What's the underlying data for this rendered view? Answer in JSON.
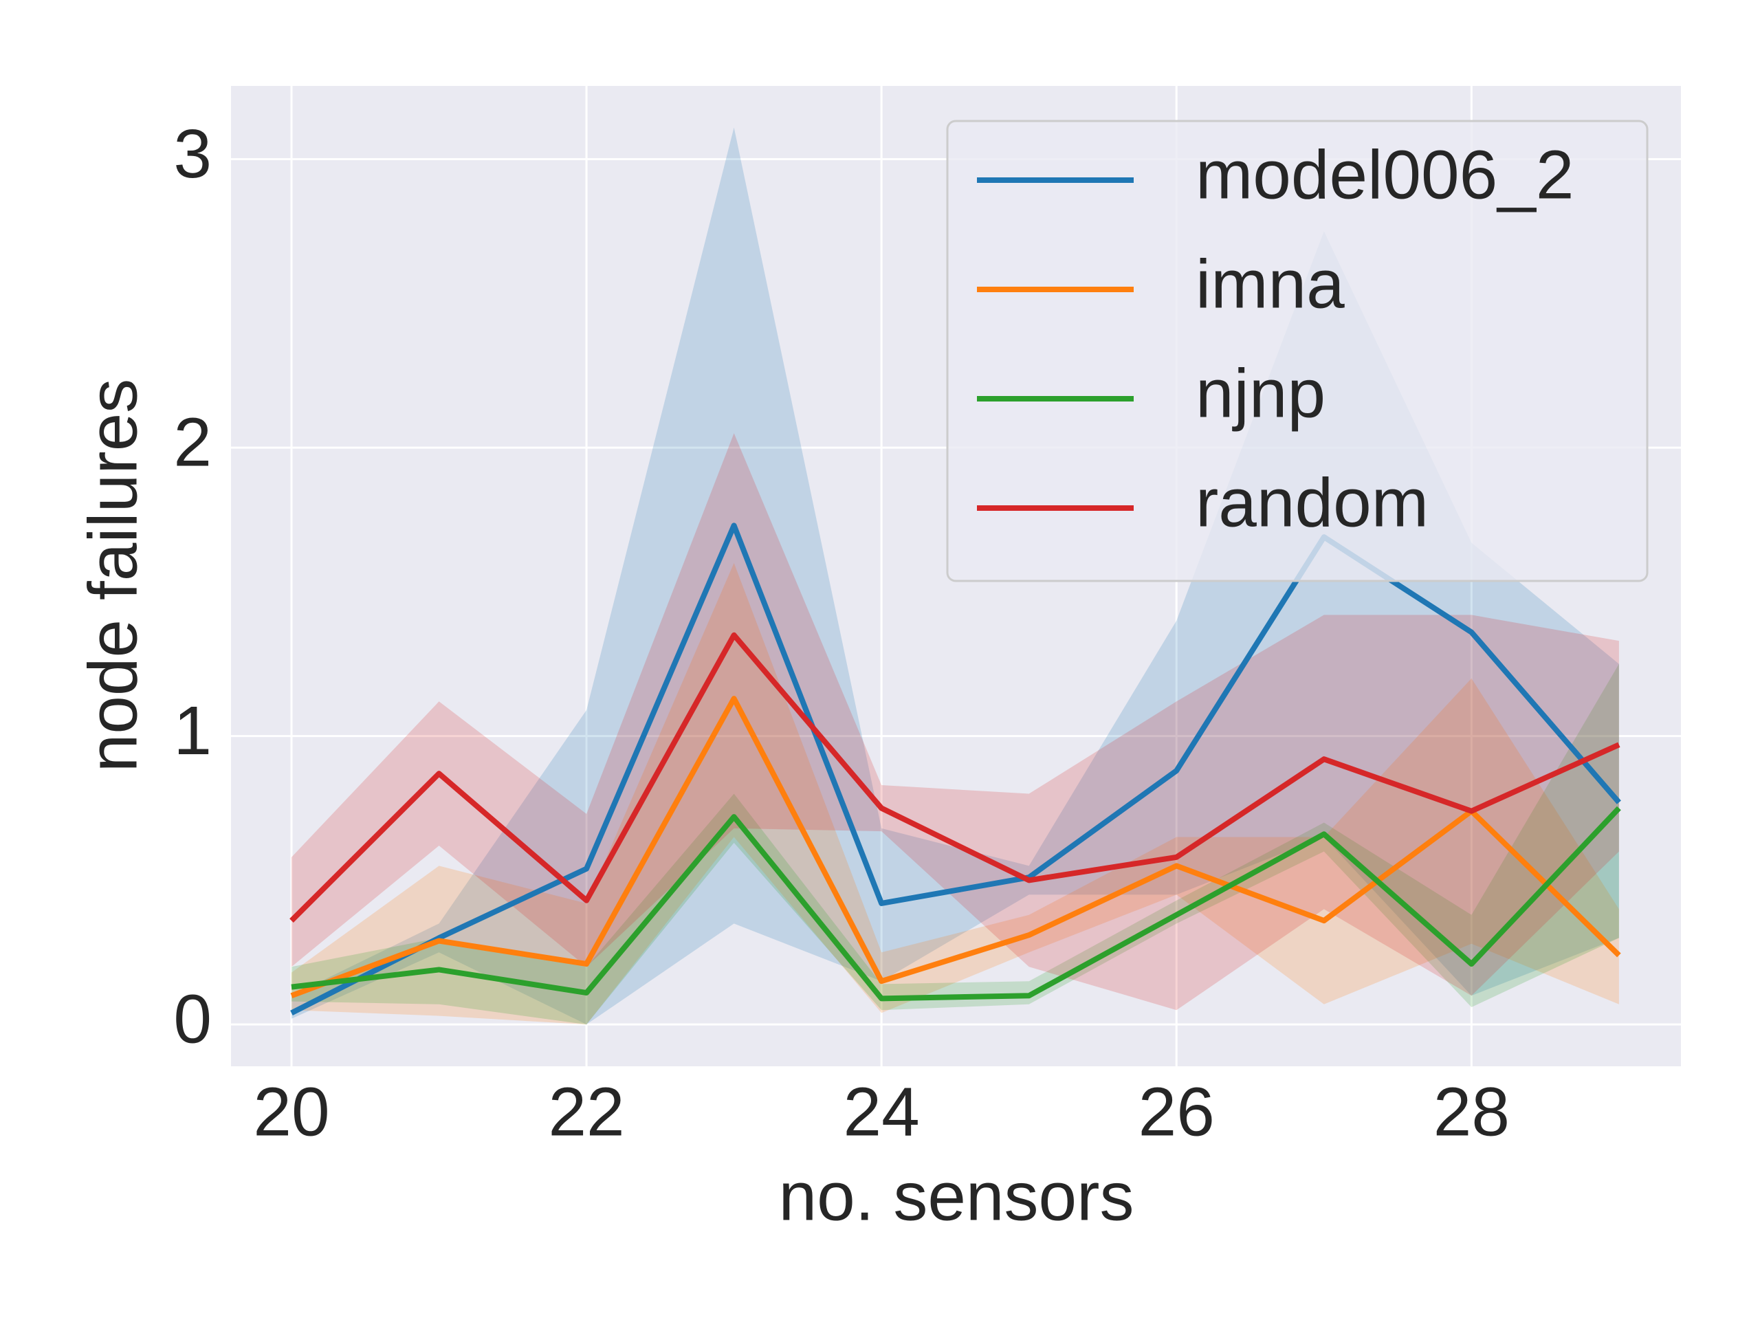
{
  "chart_data": {
    "type": "line",
    "xlabel": "no. sensors",
    "ylabel": "node failures",
    "x": [
      20,
      21,
      22,
      23,
      24,
      25,
      26,
      27,
      28,
      29
    ],
    "xlim": [
      19.59,
      29.42
    ],
    "ylim": [
      -0.145,
      3.254
    ],
    "xticks": [
      20,
      22,
      24,
      26,
      28
    ],
    "yticks": [
      0,
      1,
      2,
      3
    ],
    "grid": true,
    "legend": "upper right",
    "background": "#eaeaf2",
    "series": [
      {
        "name": "model006_2",
        "color": "#1f77b4",
        "values": [
          0.04,
          0.3,
          0.54,
          1.73,
          0.42,
          0.51,
          0.88,
          1.69,
          1.36,
          0.77
        ],
        "upper": [
          0.1,
          0.35,
          1.09,
          3.11,
          0.68,
          0.55,
          1.4,
          2.75,
          1.67,
          1.25
        ],
        "lower": [
          0.02,
          0.25,
          0.0,
          0.35,
          0.15,
          0.45,
          0.45,
          0.65,
          0.1,
          0.3
        ]
      },
      {
        "name": "imna",
        "color": "#ff7f0e",
        "values": [
          0.1,
          0.29,
          0.21,
          1.13,
          0.15,
          0.31,
          0.55,
          0.36,
          0.74,
          0.24
        ],
        "upper": [
          0.18,
          0.55,
          0.42,
          1.6,
          0.25,
          0.38,
          0.65,
          0.65,
          1.2,
          0.4
        ],
        "lower": [
          0.05,
          0.03,
          0.0,
          0.65,
          0.04,
          0.25,
          0.45,
          0.07,
          0.28,
          0.07
        ]
      },
      {
        "name": "njnp",
        "color": "#2ca02c",
        "values": [
          0.13,
          0.19,
          0.11,
          0.72,
          0.09,
          0.1,
          0.38,
          0.66,
          0.21,
          0.75
        ],
        "upper": [
          0.2,
          0.3,
          0.2,
          0.8,
          0.14,
          0.15,
          0.43,
          0.7,
          0.38,
          1.25
        ],
        "lower": [
          0.08,
          0.07,
          0.0,
          0.63,
          0.05,
          0.07,
          0.35,
          0.6,
          0.06,
          0.3
        ]
      },
      {
        "name": "random",
        "color": "#d62728",
        "values": [
          0.36,
          0.87,
          0.43,
          1.35,
          0.75,
          0.5,
          0.58,
          0.92,
          0.74,
          0.97
        ],
        "upper": [
          0.58,
          1.12,
          0.73,
          2.05,
          0.83,
          0.8,
          1.12,
          1.42,
          1.42,
          1.33
        ],
        "lower": [
          0.2,
          0.62,
          0.2,
          0.68,
          0.67,
          0.2,
          0.05,
          0.4,
          0.1,
          0.6
        ]
      }
    ]
  }
}
